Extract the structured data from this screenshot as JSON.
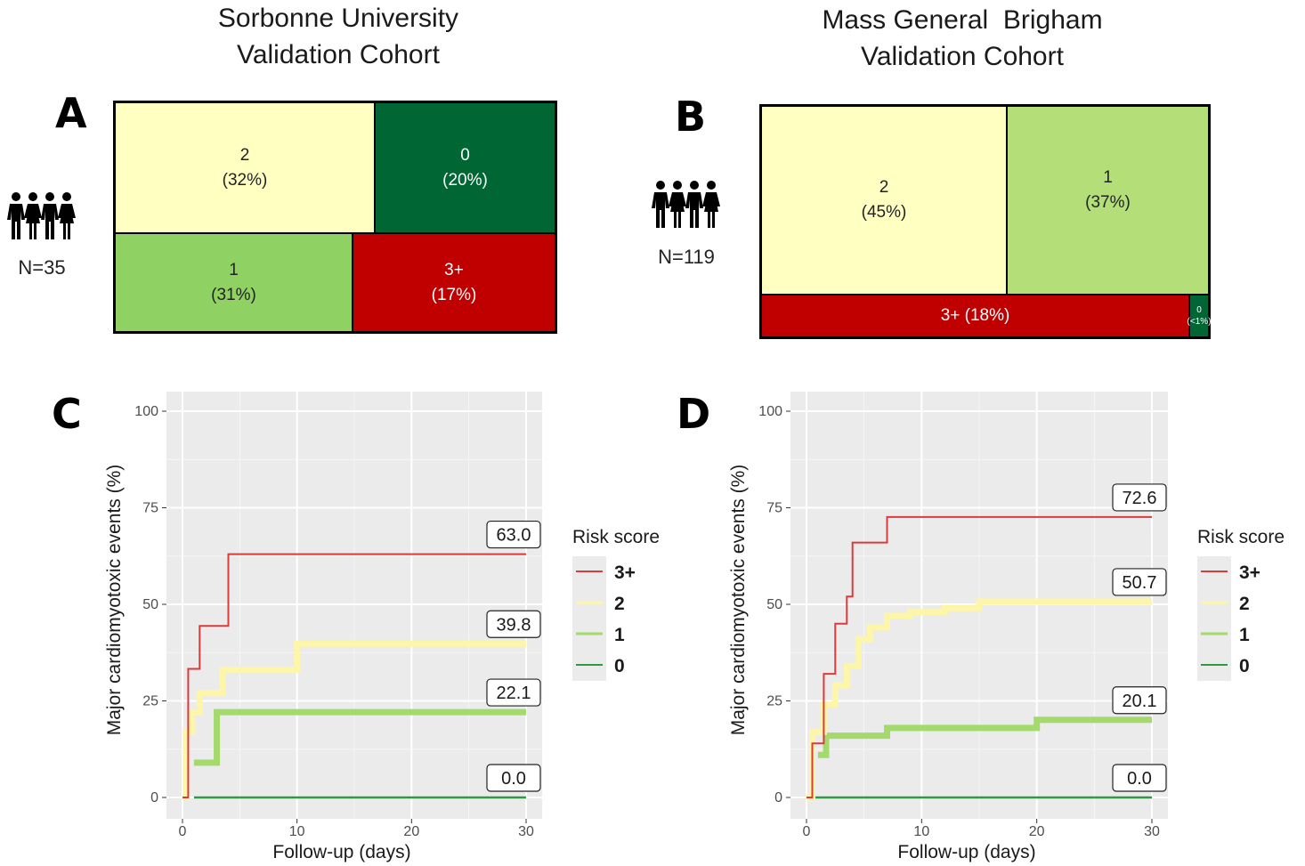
{
  "cohorts": {
    "left_title": [
      "Sorbonne University",
      "Validation Cohort"
    ],
    "right_title": [
      "Mass General  Brigham",
      "Validation Cohort"
    ]
  },
  "panels": {
    "A": "A",
    "B": "B",
    "C": "C",
    "D": "D"
  },
  "colors": {
    "score_3plus": "#c00000",
    "score_2": "#ffffc2",
    "score_1": "#8fd163",
    "score_0": "#006633",
    "plot_bg": "#ebebeb",
    "line_3plus": "#dc3b3b",
    "line_2": "#fdf6a8",
    "line_1": "#a4d96c",
    "line_0": "#2e9b44"
  },
  "icons": {
    "people": "people-group-icon"
  },
  "treemap_A": {
    "n_label": "N=35",
    "tiles": [
      {
        "score": "2",
        "pct": "(32%)",
        "color": "#ffffc2"
      },
      {
        "score": "0",
        "pct": "(20%)",
        "color": "#006633"
      },
      {
        "score": "1",
        "pct": "(31%)",
        "color": "#8fd163"
      },
      {
        "score": "3+",
        "pct": "(17%)",
        "color": "#c00000"
      }
    ]
  },
  "treemap_B": {
    "n_label": "N=119",
    "tiles": [
      {
        "score": "2",
        "pct": "(45%)",
        "color": "#ffffc2"
      },
      {
        "score": "1",
        "pct": "(37%)",
        "color": "#b3de78"
      },
      {
        "score": "3+ (18%)",
        "pct": "",
        "color": "#c00000"
      },
      {
        "score": "0",
        "pct": "(<1%)",
        "color": "#006633"
      }
    ]
  },
  "chart_data": [
    {
      "type": "line",
      "panel": "C",
      "xlabel": "Follow-up (days)",
      "ylabel": "Major cardiomyotoxic events (%)",
      "xlim": [
        0,
        30
      ],
      "ylim": [
        0,
        100
      ],
      "xticks": [
        0,
        10,
        20,
        30
      ],
      "yticks": [
        0,
        25,
        50,
        75,
        100
      ],
      "legend": {
        "title": "Risk score",
        "position": "right"
      },
      "series": [
        {
          "name": "3+",
          "color": "#dc3b3b",
          "x": [
            0,
            0.5,
            0.5,
            1.5,
            1.5,
            4,
            4,
            30
          ],
          "y": [
            0,
            0,
            33.3,
            33.3,
            44.4,
            44.4,
            63.0,
            63.0
          ],
          "final_label": "63.0"
        },
        {
          "name": "2",
          "color": "#fdf6a8",
          "x": [
            0,
            0.3,
            0.3,
            0.8,
            0.8,
            1.5,
            1.5,
            3.5,
            3.5,
            10,
            10,
            30
          ],
          "y": [
            0,
            0,
            17,
            17,
            22,
            22,
            27,
            27,
            33,
            33,
            39.8,
            39.8
          ],
          "final_label": "39.8"
        },
        {
          "name": "1",
          "color": "#a4d96c",
          "x": [
            1,
            3,
            3,
            30
          ],
          "y": [
            9,
            9,
            22.1,
            22.1
          ],
          "final_label": "22.1"
        },
        {
          "name": "0",
          "color": "#2e9b44",
          "x": [
            1,
            30
          ],
          "y": [
            0,
            0
          ],
          "final_label": "0.0"
        }
      ]
    },
    {
      "type": "line",
      "panel": "D",
      "xlabel": "Follow-up (days)",
      "ylabel": "Major cardiomyotoxic events (%)",
      "xlim": [
        0,
        30
      ],
      "ylim": [
        0,
        100
      ],
      "xticks": [
        0,
        10,
        20,
        30
      ],
      "yticks": [
        0,
        25,
        50,
        75,
        100
      ],
      "legend": {
        "title": "Risk score",
        "position": "right"
      },
      "series": [
        {
          "name": "3+",
          "color": "#dc3b3b",
          "x": [
            0,
            0.5,
            0.5,
            1.5,
            1.5,
            2.5,
            2.5,
            3.5,
            3.5,
            4,
            4,
            7,
            7,
            30
          ],
          "y": [
            0,
            0,
            14,
            14,
            32,
            32,
            45,
            45,
            52,
            52,
            66,
            66,
            72.6,
            72.6
          ],
          "final_label": "72.6"
        },
        {
          "name": "2",
          "color": "#fdf6a8",
          "x": [
            0,
            0.5,
            0.5,
            1.5,
            1.5,
            2.5,
            2.5,
            3.5,
            3.5,
            4.5,
            4.5,
            5.5,
            5.5,
            7,
            7,
            9,
            9,
            12,
            12,
            15,
            15,
            30
          ],
          "y": [
            0,
            0,
            17,
            17,
            24,
            24,
            29,
            29,
            34,
            34,
            41,
            41,
            44,
            44,
            47,
            47,
            48,
            48,
            49,
            49,
            50.7,
            50.7
          ],
          "final_label": "50.7"
        },
        {
          "name": "1",
          "color": "#a4d96c",
          "x": [
            1,
            1.7,
            1.7,
            7,
            7,
            20,
            20,
            30
          ],
          "y": [
            11,
            11,
            16,
            16,
            18,
            18,
            20.1,
            20.1
          ],
          "final_label": "20.1"
        },
        {
          "name": "0",
          "color": "#2e9b44",
          "x": [
            0.5,
            30
          ],
          "y": [
            0,
            0
          ],
          "final_label": "0.0"
        }
      ]
    }
  ]
}
